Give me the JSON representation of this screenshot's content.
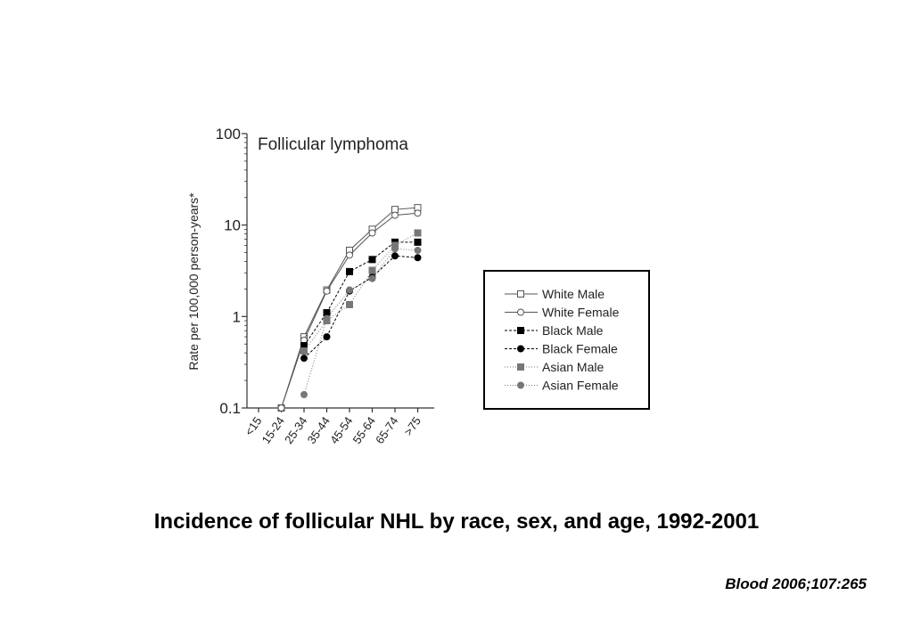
{
  "chart_data": {
    "type": "line",
    "title": "Follicular lymphoma",
    "ylabel": "Rate per 100,000 person-years*",
    "xlabel": "",
    "y_scale": "log",
    "ylim": [
      0.1,
      100
    ],
    "y_ticks": [
      "0.1",
      "1",
      "10",
      "100"
    ],
    "categories": [
      "<15",
      "15-24",
      "25-34",
      "35-44",
      "45-54",
      "55-64",
      "65-74",
      ">75"
    ],
    "legend_position": "right",
    "grid": false,
    "series": [
      {
        "name": "White Male",
        "marker": "square",
        "fill": "#ffffff",
        "stroke": "#555555",
        "dash": "none",
        "values": [
          null,
          0.1,
          0.6,
          1.95,
          5.3,
          9.0,
          14.8,
          15.5
        ]
      },
      {
        "name": "White Female",
        "marker": "circle",
        "fill": "#ffffff",
        "stroke": "#555555",
        "dash": "none",
        "values": [
          null,
          0.1,
          0.55,
          1.9,
          4.7,
          8.2,
          12.8,
          13.5
        ]
      },
      {
        "name": "Black Male",
        "marker": "square",
        "fill": "#000000",
        "stroke": "#000000",
        "dash": "3,2",
        "values": [
          null,
          null,
          0.48,
          1.1,
          3.1,
          4.2,
          6.5,
          6.5
        ]
      },
      {
        "name": "Black Female",
        "marker": "circle",
        "fill": "#000000",
        "stroke": "#000000",
        "dash": "3,2",
        "values": [
          null,
          null,
          0.35,
          0.6,
          1.9,
          2.7,
          4.6,
          4.4
        ]
      },
      {
        "name": "Asian Male",
        "marker": "square",
        "fill": "#777777",
        "stroke": "#777777",
        "dash": "1,2",
        "values": [
          null,
          null,
          0.42,
          0.9,
          1.35,
          3.2,
          6.0,
          8.2
        ]
      },
      {
        "name": "Asian Female",
        "marker": "circle",
        "fill": "#777777",
        "stroke": "#777777",
        "dash": "1,2",
        "values": [
          null,
          null,
          0.14,
          0.95,
          1.95,
          2.6,
          5.5,
          5.3
        ]
      }
    ]
  },
  "caption": "Incidence of follicular NHL by race, sex, and age, 1992-2001",
  "citation": "Blood 2006;107:265"
}
